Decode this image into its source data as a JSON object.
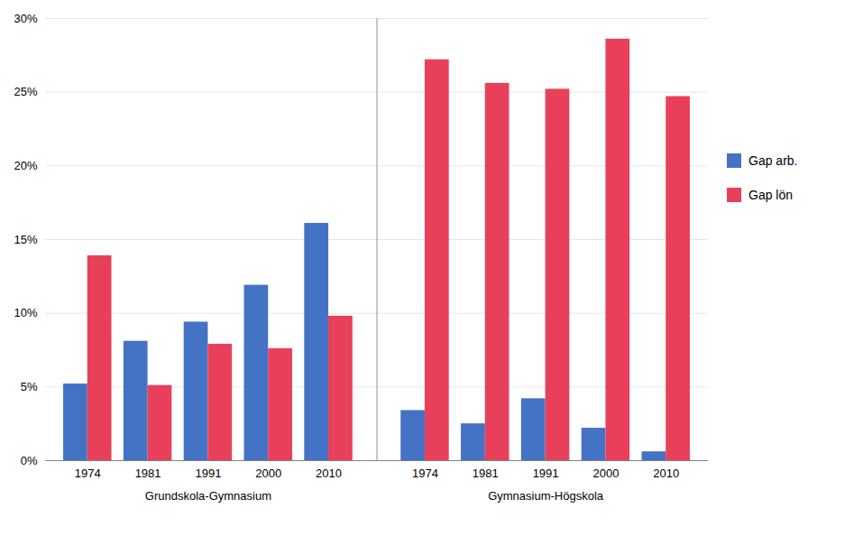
{
  "chart_data": {
    "type": "bar",
    "categories": [
      "1974",
      "1981",
      "1991",
      "2000",
      "2010",
      "1974",
      "1981",
      "1991",
      "2000",
      "2010"
    ],
    "groups": [
      "Grundskola-Gymnasium",
      "Grundskola-Gymnasium",
      "Grundskola-Gymnasium",
      "Grundskola-Gymnasium",
      "Grundskola-Gymnasium",
      "Gymnasium-Högskola",
      "Gymnasium-Högskola",
      "Gymnasium-Högskola",
      "Gymnasium-Högskola",
      "Gymnasium-Högskola"
    ],
    "series": [
      {
        "name": "Gap arb.",
        "color": "#4472C4",
        "values": [
          0.052,
          0.081,
          0.094,
          0.119,
          0.161,
          0.034,
          0.025,
          0.042,
          0.022,
          0.006
        ]
      },
      {
        "name": "Gap lön",
        "color": "#E8405A",
        "values": [
          0.139,
          0.051,
          0.079,
          0.076,
          0.098,
          0.272,
          0.256,
          0.252,
          0.286,
          0.247
        ]
      }
    ],
    "ylim": [
      0,
      0.3
    ],
    "yticks": [
      {
        "value": 0,
        "label": "0%"
      },
      {
        "value": 0.05,
        "label": "5%"
      },
      {
        "value": 0.1,
        "label": "10%"
      },
      {
        "value": 0.15,
        "label": "15%"
      },
      {
        "value": 0.2,
        "label": "20%"
      },
      {
        "value": 0.25,
        "label": "25%"
      },
      {
        "value": 0.3,
        "label": "30%"
      }
    ],
    "grid": true,
    "legend": "right"
  }
}
